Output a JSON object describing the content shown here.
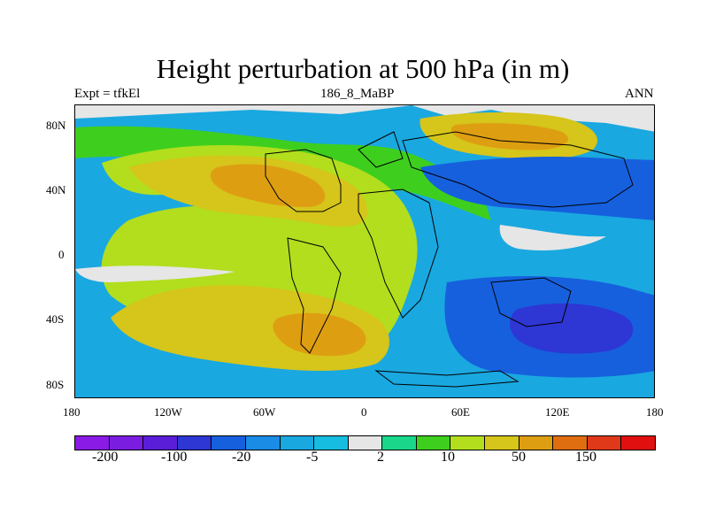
{
  "title": "Height perturbation at 500 hPa (in m)",
  "subtitle_left": "Expt = tfkEl",
  "subtitle_center": "186_8_MaBP",
  "subtitle_right": "ANN",
  "axes": {
    "y_ticks": [
      "80N",
      "40N",
      "0",
      "40S",
      "80S"
    ],
    "x_ticks": [
      "180",
      "120W",
      "60W",
      "0",
      "60E",
      "120E",
      "180"
    ]
  },
  "colorbar": {
    "colors": [
      "#8a1ae6",
      "#7a1de0",
      "#5a1ed8",
      "#2e36d4",
      "#1660de",
      "#1a8ce6",
      "#1aa8e0",
      "#16bde0",
      "#e6e6e6",
      "#1ad68a",
      "#3ecf1e",
      "#b2de1e",
      "#d6c51a",
      "#de9e12",
      "#de6e10",
      "#e0391a",
      "#e01010"
    ],
    "labels": [
      "-200",
      "-100",
      "-20",
      "-5",
      "2",
      "10",
      "50",
      "150"
    ]
  },
  "legend_colors": {
    "background_land_water_zero": "#e6e6e6",
    "coastline": "#000000"
  }
}
